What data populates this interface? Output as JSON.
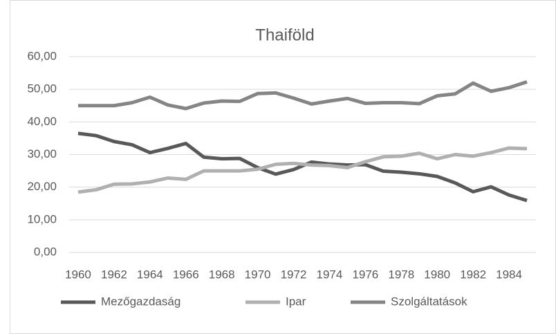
{
  "chart_data": {
    "type": "line",
    "title": "Thaiföld",
    "categories": [
      "1960",
      null,
      "1962",
      null,
      "1964",
      null,
      "1966",
      null,
      "1968",
      null,
      "1970",
      null,
      "1972",
      null,
      "1974",
      null,
      "1976",
      null,
      "1978",
      null,
      "1980",
      null,
      "1982",
      null,
      "1984",
      null
    ],
    "series": [
      {
        "name": "Mezőgazdaság",
        "color": "#595959",
        "values": [
          36.5,
          35.8,
          34,
          33,
          30.6,
          31.9,
          33.4,
          29.2,
          28.7,
          28.8,
          26,
          24,
          25.4,
          27.7,
          27.1,
          26.8,
          26.9,
          24.9,
          24.6,
          24.1,
          23.3,
          21.3,
          18.6,
          20.1,
          17.6,
          15.9
        ]
      },
      {
        "name": "Ipar",
        "color": "#b0b0b0",
        "values": [
          18.5,
          19.2,
          20.9,
          21,
          21.6,
          22.8,
          22.4,
          25,
          25,
          25,
          25.5,
          27,
          27.3,
          26.8,
          26.6,
          26,
          27.8,
          29.3,
          29.5,
          30.4,
          28.7,
          30,
          29.5,
          30.6,
          32,
          31.8
        ]
      },
      {
        "name": "Szolgáltatások",
        "color": "#858585",
        "values": [
          45,
          45,
          45,
          45.9,
          47.6,
          45.2,
          44.1,
          45.8,
          46.4,
          46.3,
          48.7,
          48.9,
          47.3,
          45.5,
          46.4,
          47.2,
          45.7,
          45.9,
          45.9,
          45.6,
          48,
          48.6,
          51.9,
          49.4,
          50.5,
          52.3
        ]
      }
    ],
    "ylim": [
      0,
      60
    ],
    "yticks": [
      {
        "value": 0,
        "label": "0,00"
      },
      {
        "value": 10,
        "label": "10,00"
      },
      {
        "value": 20,
        "label": "20,00"
      },
      {
        "value": 30,
        "label": "30,00"
      },
      {
        "value": 40,
        "label": "40,00"
      },
      {
        "value": 50,
        "label": "50,00"
      },
      {
        "value": 60,
        "label": "60,00"
      }
    ],
    "grid": true,
    "legend": "bottom"
  }
}
